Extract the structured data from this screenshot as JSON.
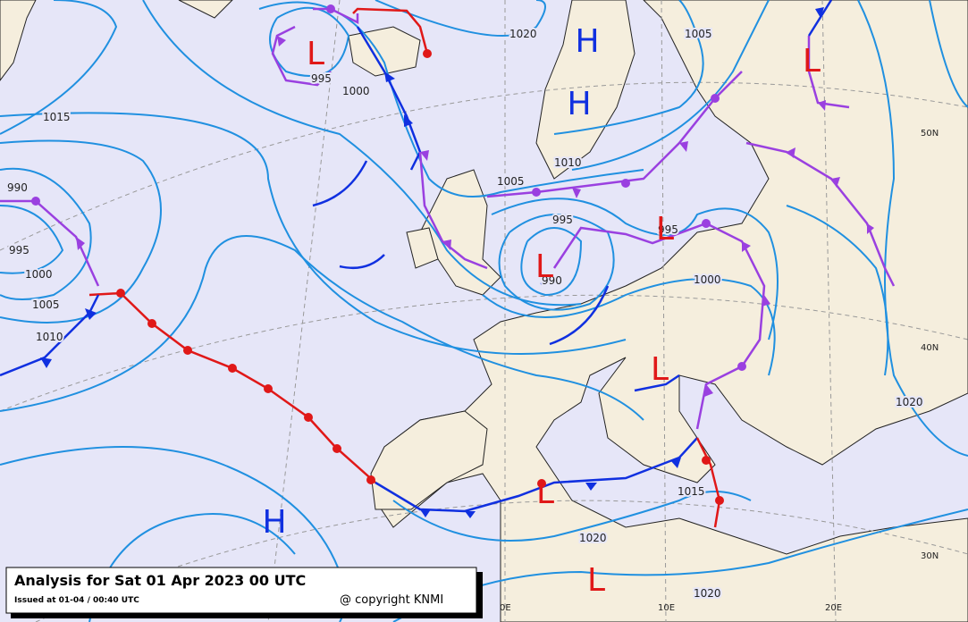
{
  "title": "Analysis for Sat 01 Apr 2023 00 UTC",
  "issued": "Issued at 01-04 / 00:40 UTC",
  "copyright": "@ copyright KNMI",
  "isobar_labels": [
    "1020",
    "1005",
    "1015",
    "1000",
    "995",
    "990",
    "995",
    "1000",
    "1005",
    "1010",
    "1005",
    "1010",
    "995",
    "995",
    "1000",
    "990",
    "1020",
    "1015",
    "1020",
    "1020"
  ],
  "pressure_centers": [
    "H",
    "H",
    "L",
    "L",
    "L",
    "L",
    "L",
    "L",
    "L",
    "H"
  ],
  "grid_labels": [
    "50N",
    "40N",
    "30N",
    "0E",
    "10E",
    "20E"
  ]
}
